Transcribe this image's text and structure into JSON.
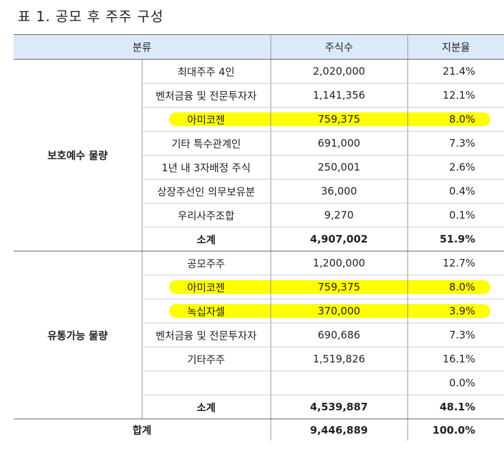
{
  "title": "표 1. 공모 후 주주 구성",
  "table": {
    "header": [
      "분류",
      "주식수",
      "지분율"
    ],
    "groups": [
      {
        "label": "보호예수 물량",
        "rows": [
          {
            "name": "최대주주 4인",
            "shares": "2,020,000",
            "ratio": "21.4%"
          },
          {
            "name": "벤처금융 및 전문투자자",
            "shares": "1,141,356",
            "ratio": "12.1%"
          },
          {
            "name": "아미코젠",
            "shares": "759,375",
            "ratio": "8.0%",
            "highlight": true
          },
          {
            "name": "기타 특수관계인",
            "shares": "691,000",
            "ratio": "7.3%"
          },
          {
            "name": "1년 내 3자배정 주식",
            "shares": "250,001",
            "ratio": "2.6%"
          },
          {
            "name": "상장주선인 의무보유분",
            "shares": "36,000",
            "ratio": "0.4%"
          },
          {
            "name": "우리사주조합",
            "shares": "9,270",
            "ratio": "0.1%"
          }
        ],
        "subtotal": {
          "label": "소계",
          "shares": "4,907,002",
          "ratio": "51.9%"
        }
      },
      {
        "label": "유통가능 물량",
        "rows": [
          {
            "name": "공모주주",
            "shares": "1,200,000",
            "ratio": "12.7%"
          },
          {
            "name": "아미코젠",
            "shares": "759,375",
            "ratio": "8.0%",
            "highlight": true
          },
          {
            "name": "녹십자셀",
            "shares": "370,000",
            "ratio": "3.9%",
            "highlight": true
          },
          {
            "name": "벤처금융 및 전문투자자",
            "shares": "690,686",
            "ratio": "7.3%"
          },
          {
            "name": "기타주주",
            "shares": "1,519,826",
            "ratio": "16.1%"
          },
          {
            "name": null,
            "shares": null,
            "ratio": "0.0%"
          }
        ],
        "subtotal": {
          "label": "소계",
          "shares": "4,539,887",
          "ratio": "48.1%"
        }
      }
    ],
    "total": {
      "label": "합계",
      "shares": "9,446,889",
      "ratio": "100.0%"
    }
  }
}
